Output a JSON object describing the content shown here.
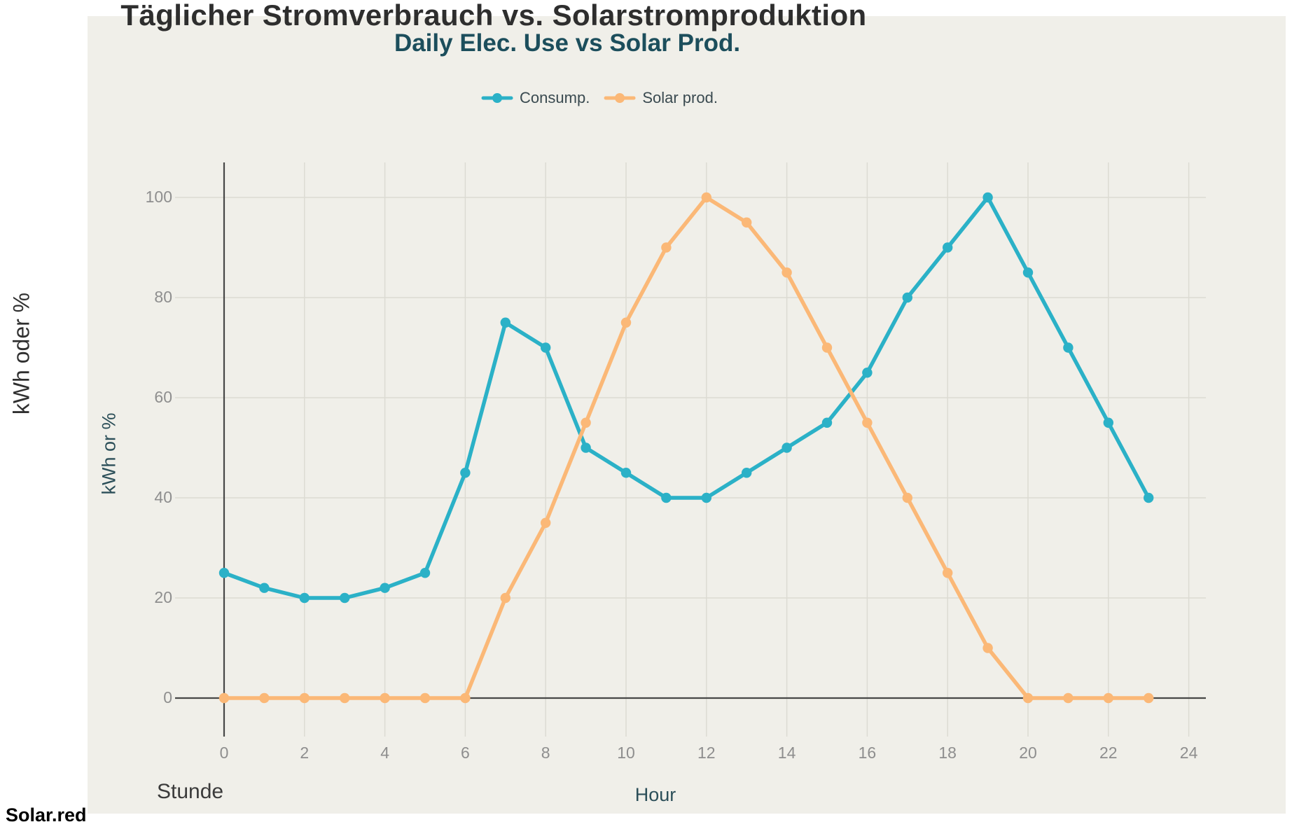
{
  "chart": {
    "title": "Täglicher Stromverbrauch vs. Solarstromproduktion",
    "subtitle": "Daily Elec. Use vs Solar Prod.",
    "x_axis_label_de": "Stunde",
    "x_axis_label_en": "Hour",
    "y_axis_label_de": "kWh oder %",
    "y_axis_label_en": "kWh or %"
  },
  "brand": "Solar.red",
  "colors": {
    "consumption": "#2BB1C7",
    "solar": "#FBB877",
    "figure_background": "#F0EFE9",
    "grid": "#DCDBD3",
    "axis_line": "#474747",
    "tick_label": "#8E8E8E",
    "title_text": "#2E2E2E",
    "teal_text": "#1C4E5C",
    "german_label_text": "#3B3B3B",
    "legend_text": "#3A4A50"
  },
  "chart_data": {
    "type": "line",
    "x": [
      0,
      1,
      2,
      3,
      4,
      5,
      6,
      7,
      8,
      9,
      10,
      11,
      12,
      13,
      14,
      15,
      16,
      17,
      18,
      19,
      20,
      21,
      22,
      23
    ],
    "series": [
      {
        "name": "Consump.",
        "color_key": "consumption",
        "values": [
          25,
          22,
          20,
          20,
          22,
          25,
          45,
          75,
          70,
          50,
          45,
          40,
          40,
          45,
          50,
          55,
          65,
          80,
          90,
          100,
          85,
          70,
          55,
          40
        ]
      },
      {
        "name": "Solar prod.",
        "color_key": "solar",
        "values": [
          0,
          0,
          0,
          0,
          0,
          0,
          0,
          20,
          35,
          55,
          75,
          90,
          100,
          95,
          85,
          70,
          55,
          40,
          25,
          10,
          0,
          0,
          0,
          0
        ]
      }
    ],
    "x_ticks": [
      0,
      2,
      4,
      6,
      8,
      10,
      12,
      14,
      16,
      18,
      20,
      22,
      24
    ],
    "y_ticks": [
      0,
      20,
      40,
      60,
      80,
      100
    ],
    "xlim": [
      0,
      24
    ],
    "ylim": [
      0,
      100
    ],
    "title": "Täglicher Stromverbrauch vs. Solarstromproduktion",
    "xlabel": "Stunde / Hour",
    "ylabel": "kWh oder % / kWh or %",
    "grid": true,
    "legend_position": "top"
  }
}
